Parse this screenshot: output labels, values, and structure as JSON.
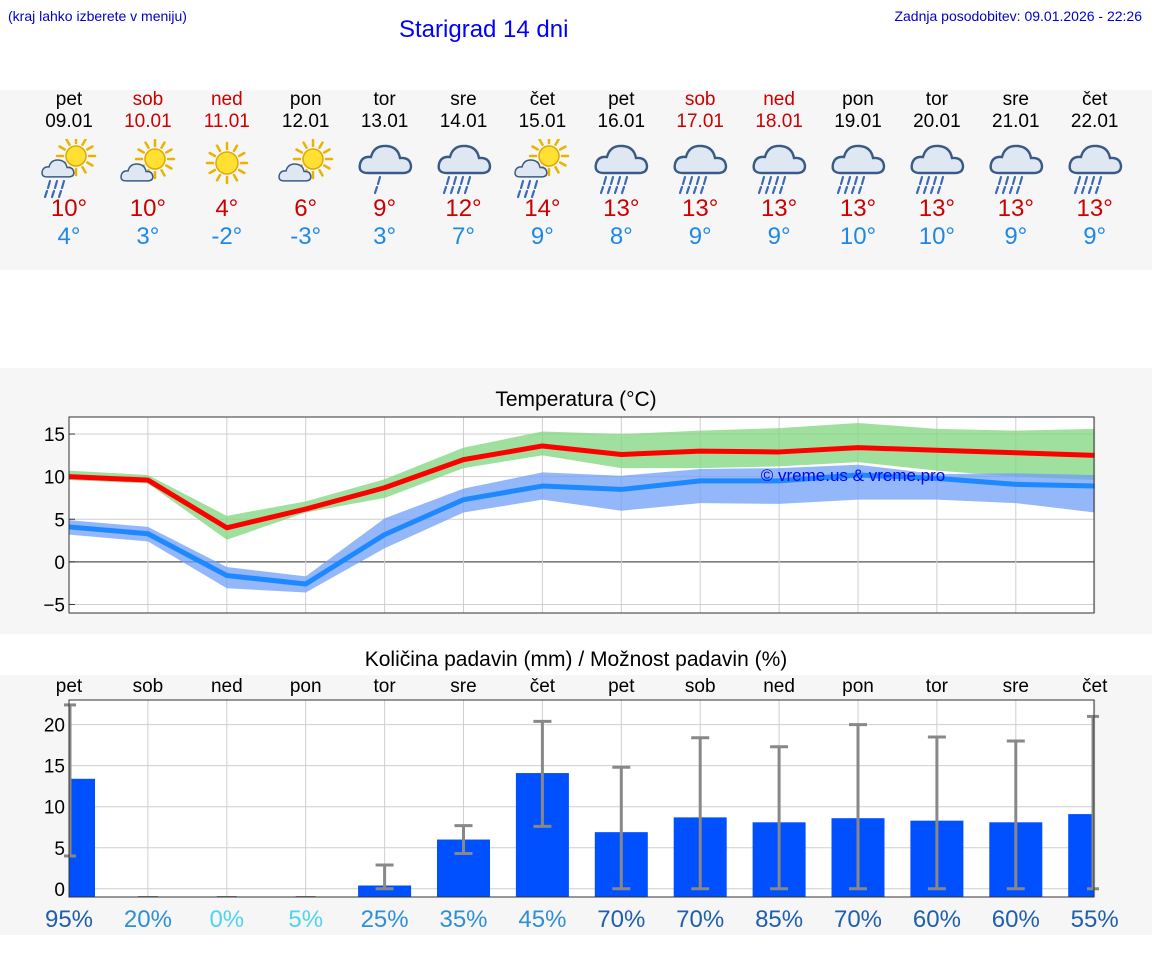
{
  "header": {
    "hint": "(kraj lahko izberete v meniju)",
    "title": "Starigrad 14 dni",
    "updated": "Zadnja posodobitev: 09.01.2026 - 22:26"
  },
  "days": [
    {
      "name": "pet",
      "date": "09.01",
      "weekend": false,
      "icon": "sun-cloud-rain-icon",
      "tmax": "10°",
      "tmin": "4°"
    },
    {
      "name": "sob",
      "date": "10.01",
      "weekend": true,
      "icon": "sun-cloud-icon",
      "tmax": "10°",
      "tmin": "3°"
    },
    {
      "name": "ned",
      "date": "11.01",
      "weekend": true,
      "icon": "sun-icon",
      "tmax": "4°",
      "tmin": "-2°"
    },
    {
      "name": "pon",
      "date": "12.01",
      "weekend": false,
      "icon": "sun-cloud-icon",
      "tmax": "6°",
      "tmin": "-3°"
    },
    {
      "name": "tor",
      "date": "13.01",
      "weekend": false,
      "icon": "cloud-light-rain-icon",
      "tmax": "9°",
      "tmin": "3°"
    },
    {
      "name": "sre",
      "date": "14.01",
      "weekend": false,
      "icon": "cloud-rain-icon",
      "tmax": "12°",
      "tmin": "7°"
    },
    {
      "name": "čet",
      "date": "15.01",
      "weekend": false,
      "icon": "sun-cloud-rain-icon",
      "tmax": "14°",
      "tmin": "9°"
    },
    {
      "name": "pet",
      "date": "16.01",
      "weekend": false,
      "icon": "cloud-rain-icon",
      "tmax": "13°",
      "tmin": "8°"
    },
    {
      "name": "sob",
      "date": "17.01",
      "weekend": true,
      "icon": "cloud-rain-icon",
      "tmax": "13°",
      "tmin": "9°"
    },
    {
      "name": "ned",
      "date": "18.01",
      "weekend": true,
      "icon": "cloud-rain-icon",
      "tmax": "13°",
      "tmin": "9°"
    },
    {
      "name": "pon",
      "date": "19.01",
      "weekend": false,
      "icon": "cloud-rain-icon",
      "tmax": "13°",
      "tmin": "10°"
    },
    {
      "name": "tor",
      "date": "20.01",
      "weekend": false,
      "icon": "cloud-rain-icon",
      "tmax": "13°",
      "tmin": "10°"
    },
    {
      "name": "sre",
      "date": "21.01",
      "weekend": false,
      "icon": "cloud-rain-icon",
      "tmax": "13°",
      "tmin": "9°"
    },
    {
      "name": "čet",
      "date": "22.01",
      "weekend": false,
      "icon": "cloud-rain-icon",
      "tmax": "13°",
      "tmin": "9°"
    }
  ],
  "colors": {
    "max": "#ff0000",
    "min": "#1e88ff",
    "max_band": "#7fd67f",
    "min_band": "#6f9ff7",
    "bar": "#0050ff",
    "err": "#888888"
  },
  "chart_data": [
    {
      "type": "line",
      "title": "Temperatura (°C)",
      "watermark": "© vreme.us & vreme.pro",
      "categories": [
        "pet",
        "sob",
        "ned",
        "pon",
        "tor",
        "sre",
        "čet",
        "pet",
        "sob",
        "ned",
        "pon",
        "tor",
        "sre",
        "čet"
      ],
      "ylim": [
        -6,
        17
      ],
      "yticks": [
        -5,
        0,
        5,
        10,
        15
      ],
      "series": [
        {
          "name": "max",
          "values": [
            10,
            9.6,
            4,
            6.2,
            8.7,
            12,
            13.6,
            12.6,
            13,
            12.9,
            13.4,
            13.1,
            12.8,
            12.5
          ],
          "band_low": [
            9.6,
            9.2,
            2.6,
            5.8,
            7.5,
            11,
            12.5,
            11,
            11,
            11.2,
            11.7,
            10.7,
            10,
            9.6
          ],
          "band_high": [
            10.7,
            10.2,
            5.4,
            7.1,
            9.7,
            13.4,
            15.3,
            15,
            15.4,
            15.7,
            16.3,
            15.6,
            15.4,
            15.6
          ]
        },
        {
          "name": "min",
          "values": [
            4.1,
            3.3,
            -1.6,
            -2.6,
            3.2,
            7.3,
            8.9,
            8.5,
            9.5,
            9.5,
            10.2,
            9.8,
            9.1,
            8.9
          ],
          "band_low": [
            3.2,
            2.4,
            -3.1,
            -3.6,
            1.6,
            5.8,
            7.3,
            6,
            6.9,
            6.8,
            7.3,
            7.3,
            6.9,
            5.8
          ],
          "band_high": [
            4.9,
            4.1,
            -0.6,
            -1.7,
            5.1,
            8.6,
            10.5,
            10.1,
            10.9,
            11,
            11.4,
            10.3,
            10.4,
            10.2
          ]
        }
      ]
    },
    {
      "type": "bar",
      "title": "Količina padavin (mm) / Možnost padavin (%)",
      "categories": [
        "pet",
        "sob",
        "ned",
        "pon",
        "tor",
        "sre",
        "čet",
        "pet",
        "sob",
        "ned",
        "pon",
        "tor",
        "sre",
        "čet"
      ],
      "ylim": [
        -1,
        23
      ],
      "yticks": [
        0,
        5,
        10,
        15,
        20
      ],
      "values": [
        13.4,
        0,
        0,
        0,
        0.4,
        6,
        14.1,
        6.9,
        8.7,
        8.1,
        8.6,
        8.3,
        8.1,
        9.1
      ],
      "err_low": [
        4,
        null,
        null,
        null,
        0,
        4.3,
        7.6,
        0,
        0,
        0,
        0,
        0,
        0,
        0
      ],
      "err_high": [
        22.4,
        null,
        null,
        null,
        2.9,
        7.7,
        20.4,
        14.8,
        18.4,
        17.3,
        20,
        18.5,
        18,
        21
      ],
      "probability": [
        "95%",
        "20%",
        "0%",
        "5%",
        "25%",
        "35%",
        "45%",
        "70%",
        "70%",
        "85%",
        "70%",
        "60%",
        "60%",
        "55%"
      ],
      "probability_colors": [
        "#1e5fb0",
        "#2f8fd6",
        "#4fd4ee",
        "#4fd4ee",
        "#2f8fd6",
        "#2f8fd6",
        "#2f8fd6",
        "#1e5fb0",
        "#1e5fb0",
        "#1e5fb0",
        "#1e5fb0",
        "#1e5fb0",
        "#1e5fb0",
        "#1e5fb0"
      ]
    }
  ]
}
